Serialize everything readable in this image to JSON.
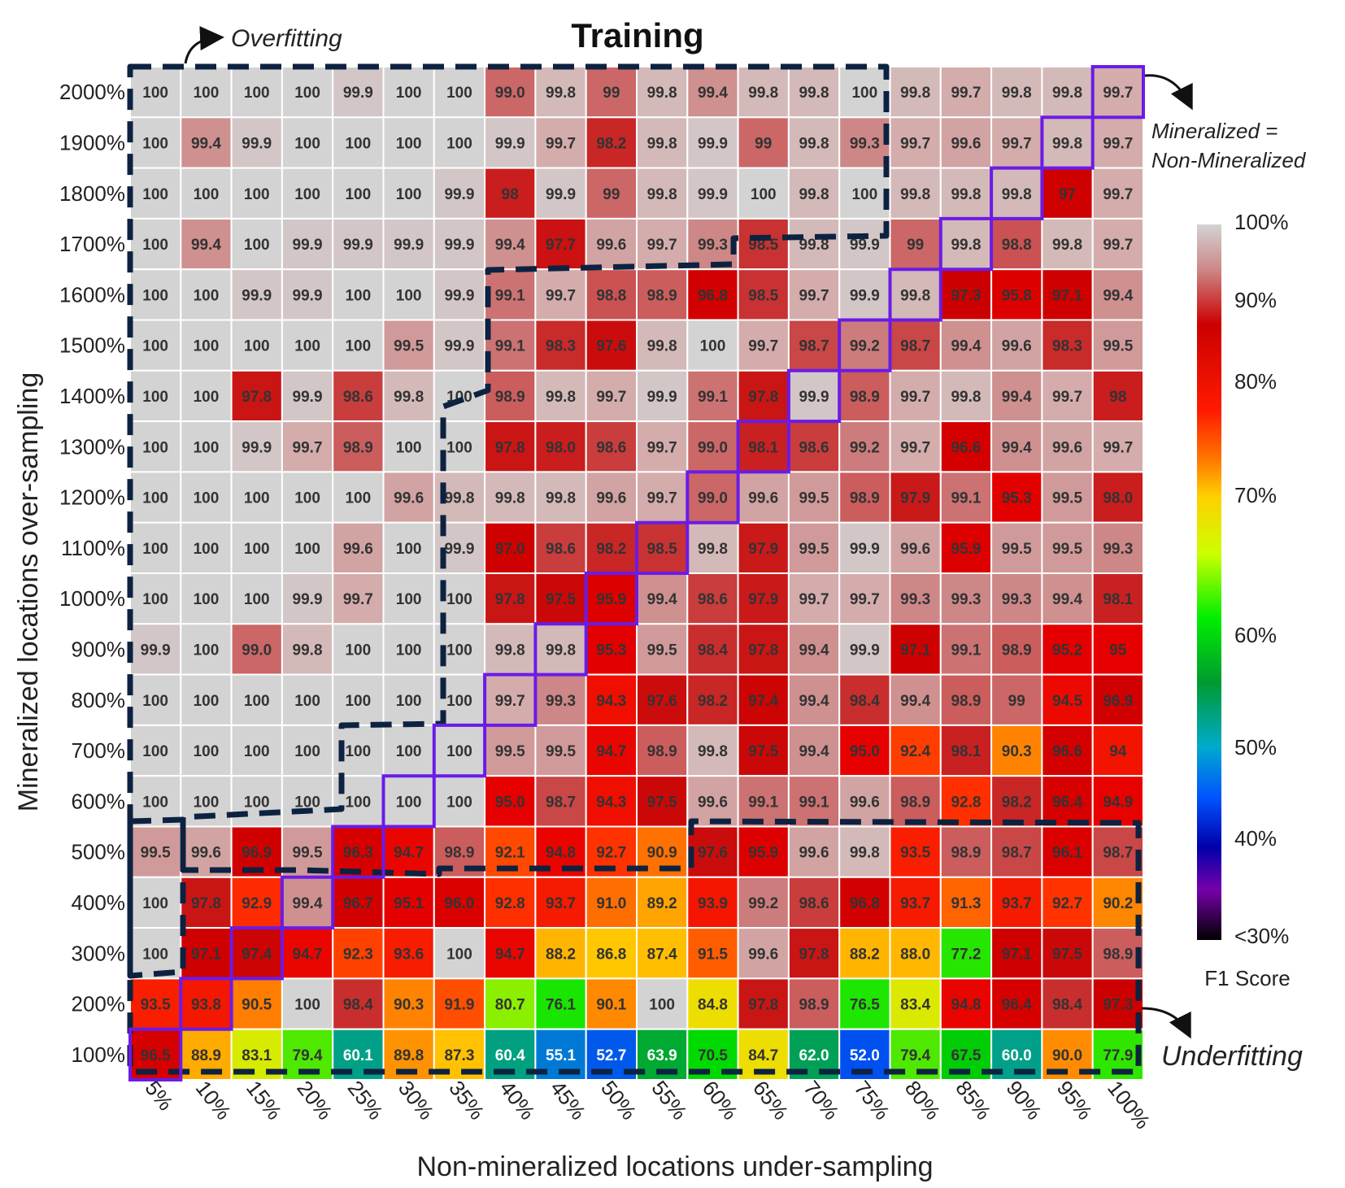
{
  "chart_data": {
    "type": "heatmap",
    "title": "Training",
    "xlabel": "Non-mineralized locations under-sampling",
    "ylabel": "Mineralized locations over-sampling",
    "x_categories": [
      "5%",
      "10%",
      "15%",
      "20%",
      "25%",
      "30%",
      "35%",
      "40%",
      "45%",
      "50%",
      "55%",
      "60%",
      "65%",
      "70%",
      "75%",
      "80%",
      "85%",
      "90%",
      "95%",
      "100%"
    ],
    "y_categories": [
      "2000%",
      "1900%",
      "1800%",
      "1700%",
      "1600%",
      "1500%",
      "1400%",
      "1300%",
      "1200%",
      "1100%",
      "1000%",
      "900%",
      "800%",
      "700%",
      "600%",
      "500%",
      "400%",
      "300%",
      "200%",
      "100%"
    ],
    "values": [
      [
        "100",
        "100",
        "100",
        "100",
        "99.9",
        "100",
        "100",
        "99.0",
        "99.8",
        "99",
        "99.8",
        "99.4",
        "99.8",
        "99.8",
        "100",
        "99.8",
        "99.7",
        "99.8",
        "99.8",
        "99.7"
      ],
      [
        "100",
        "99.4",
        "99.9",
        "100",
        "100",
        "100",
        "100",
        "99.9",
        "99.7",
        "98.2",
        "99.8",
        "99.9",
        "99",
        "99.8",
        "99.3",
        "99.7",
        "99.6",
        "99.7",
        "99.8",
        "99.7"
      ],
      [
        "100",
        "100",
        "100",
        "100",
        "100",
        "100",
        "99.9",
        "98",
        "99.9",
        "99",
        "99.8",
        "99.9",
        "100",
        "99.8",
        "100",
        "99.8",
        "99.8",
        "99.8",
        "97",
        "99.7"
      ],
      [
        "100",
        "99.4",
        "100",
        "99.9",
        "99.9",
        "99.9",
        "99.9",
        "99.4",
        "97.7",
        "99.6",
        "99.7",
        "99.3",
        "98.5",
        "99.8",
        "99.9",
        "99",
        "99.8",
        "98.8",
        "99.8",
        "99.7"
      ],
      [
        "100",
        "100",
        "99.9",
        "99.9",
        "100",
        "100",
        "99.9",
        "99.1",
        "99.7",
        "98.8",
        "98.9",
        "96.8",
        "98.5",
        "99.7",
        "99.9",
        "99.8",
        "97.3",
        "95.8",
        "97.1",
        "99.4"
      ],
      [
        "100",
        "100",
        "100",
        "100",
        "100",
        "99.5",
        "99.9",
        "99.1",
        "98.3",
        "97.6",
        "99.8",
        "100",
        "99.7",
        "98.7",
        "99.2",
        "98.7",
        "99.4",
        "99.6",
        "98.3",
        "99.5"
      ],
      [
        "100",
        "100",
        "97.8",
        "99.9",
        "98.6",
        "99.8",
        "100",
        "98.9",
        "99.8",
        "99.7",
        "99.9",
        "99.1",
        "97.8",
        "99.9",
        "98.9",
        "99.7",
        "99.8",
        "99.4",
        "99.7",
        "98"
      ],
      [
        "100",
        "100",
        "99.9",
        "99.7",
        "98.9",
        "100",
        "100",
        "97.8",
        "98.0",
        "98.6",
        "99.7",
        "99.0",
        "98.1",
        "98.6",
        "99.2",
        "99.7",
        "96.6",
        "99.4",
        "99.6",
        "99.7"
      ],
      [
        "100",
        "100",
        "100",
        "100",
        "100",
        "99.6",
        "99.8",
        "99.8",
        "99.8",
        "99.6",
        "99.7",
        "99.0",
        "99.6",
        "99.5",
        "98.9",
        "97.9",
        "99.1",
        "95.3",
        "99.5",
        "98.0"
      ],
      [
        "100",
        "100",
        "100",
        "100",
        "99.6",
        "100",
        "99.9",
        "97.0",
        "98.6",
        "98.2",
        "98.5",
        "99.8",
        "97.9",
        "99.5",
        "99.9",
        "99.6",
        "95.9",
        "99.5",
        "99.5",
        "99.3"
      ],
      [
        "100",
        "100",
        "100",
        "99.9",
        "99.7",
        "100",
        "100",
        "97.8",
        "97.5",
        "95.9",
        "99.4",
        "98.6",
        "97.9",
        "99.7",
        "99.7",
        "99.3",
        "99.3",
        "99.3",
        "99.4",
        "98.1"
      ],
      [
        "99.9",
        "100",
        "99.0",
        "99.8",
        "100",
        "100",
        "100",
        "99.8",
        "99.8",
        "95.3",
        "99.5",
        "98.4",
        "97.8",
        "99.4",
        "99.9",
        "97.1",
        "99.1",
        "98.9",
        "95.2",
        "95"
      ],
      [
        "100",
        "100",
        "100",
        "100",
        "100",
        "100",
        "100",
        "99.7",
        "99.3",
        "94.3",
        "97.6",
        "98.2",
        "97.4",
        "99.4",
        "98.4",
        "99.4",
        "98.9",
        "99",
        "94.5",
        "96.9"
      ],
      [
        "100",
        "100",
        "100",
        "100",
        "100",
        "100",
        "100",
        "99.5",
        "99.5",
        "94.7",
        "98.9",
        "99.8",
        "97.5",
        "99.4",
        "95.0",
        "92.4",
        "98.1",
        "90.3",
        "96.6",
        "94"
      ],
      [
        "100",
        "100",
        "100",
        "100",
        "100",
        "100",
        "100",
        "95.0",
        "98.7",
        "94.3",
        "97.5",
        "99.6",
        "99.1",
        "99.1",
        "99.6",
        "98.9",
        "92.8",
        "98.2",
        "96.4",
        "94.9"
      ],
      [
        "99.5",
        "99.6",
        "96.9",
        "99.5",
        "96.3",
        "94.7",
        "98.9",
        "92.1",
        "94.8",
        "92.7",
        "90.9",
        "97.6",
        "95.9",
        "99.6",
        "99.8",
        "93.5",
        "98.9",
        "98.7",
        "96.1",
        "98.7"
      ],
      [
        "100",
        "97.8",
        "92.9",
        "99.4",
        "96.7",
        "95.1",
        "96.0",
        "92.8",
        "93.7",
        "91.0",
        "89.2",
        "93.9",
        "99.2",
        "98.6",
        "96.8",
        "93.7",
        "91.3",
        "93.7",
        "92.7",
        "90.2"
      ],
      [
        "100",
        "97.1",
        "97.4",
        "94.7",
        "92.3",
        "93.6",
        "100",
        "94.7",
        "88.2",
        "86.8",
        "87.4",
        "91.5",
        "99.6",
        "97.8",
        "88.2",
        "88.0",
        "77.2",
        "97.1",
        "97.5",
        "98.9"
      ],
      [
        "93.5",
        "93.8",
        "90.5",
        "100",
        "98.4",
        "90.3",
        "91.9",
        "80.7",
        "76.1",
        "90.1",
        "100",
        "84.8",
        "97.8",
        "98.9",
        "76.5",
        "83.4",
        "94.8",
        "96.4",
        "98.4",
        "97.3"
      ],
      [
        "96.5",
        "88.9",
        "83.1",
        "79.4",
        "60.1",
        "89.8",
        "87.3",
        "60.4",
        "55.1",
        "52.7",
        "63.9",
        "70.5",
        "84.7",
        "62.0",
        "52.0",
        "79.4",
        "67.5",
        "60.0",
        "90.0",
        "77.9"
      ]
    ],
    "colorbar": {
      "label": "F1 Score",
      "ticks": [
        "100%",
        "90%",
        "80%",
        "70%",
        "60%",
        "50%",
        "40%",
        "<30%"
      ]
    },
    "annotations": {
      "overfitting": "Overfitting",
      "underfitting": "Underfitting",
      "equal_line1": "Mineralized  =",
      "equal_line2": "Non-Mineralized"
    }
  }
}
